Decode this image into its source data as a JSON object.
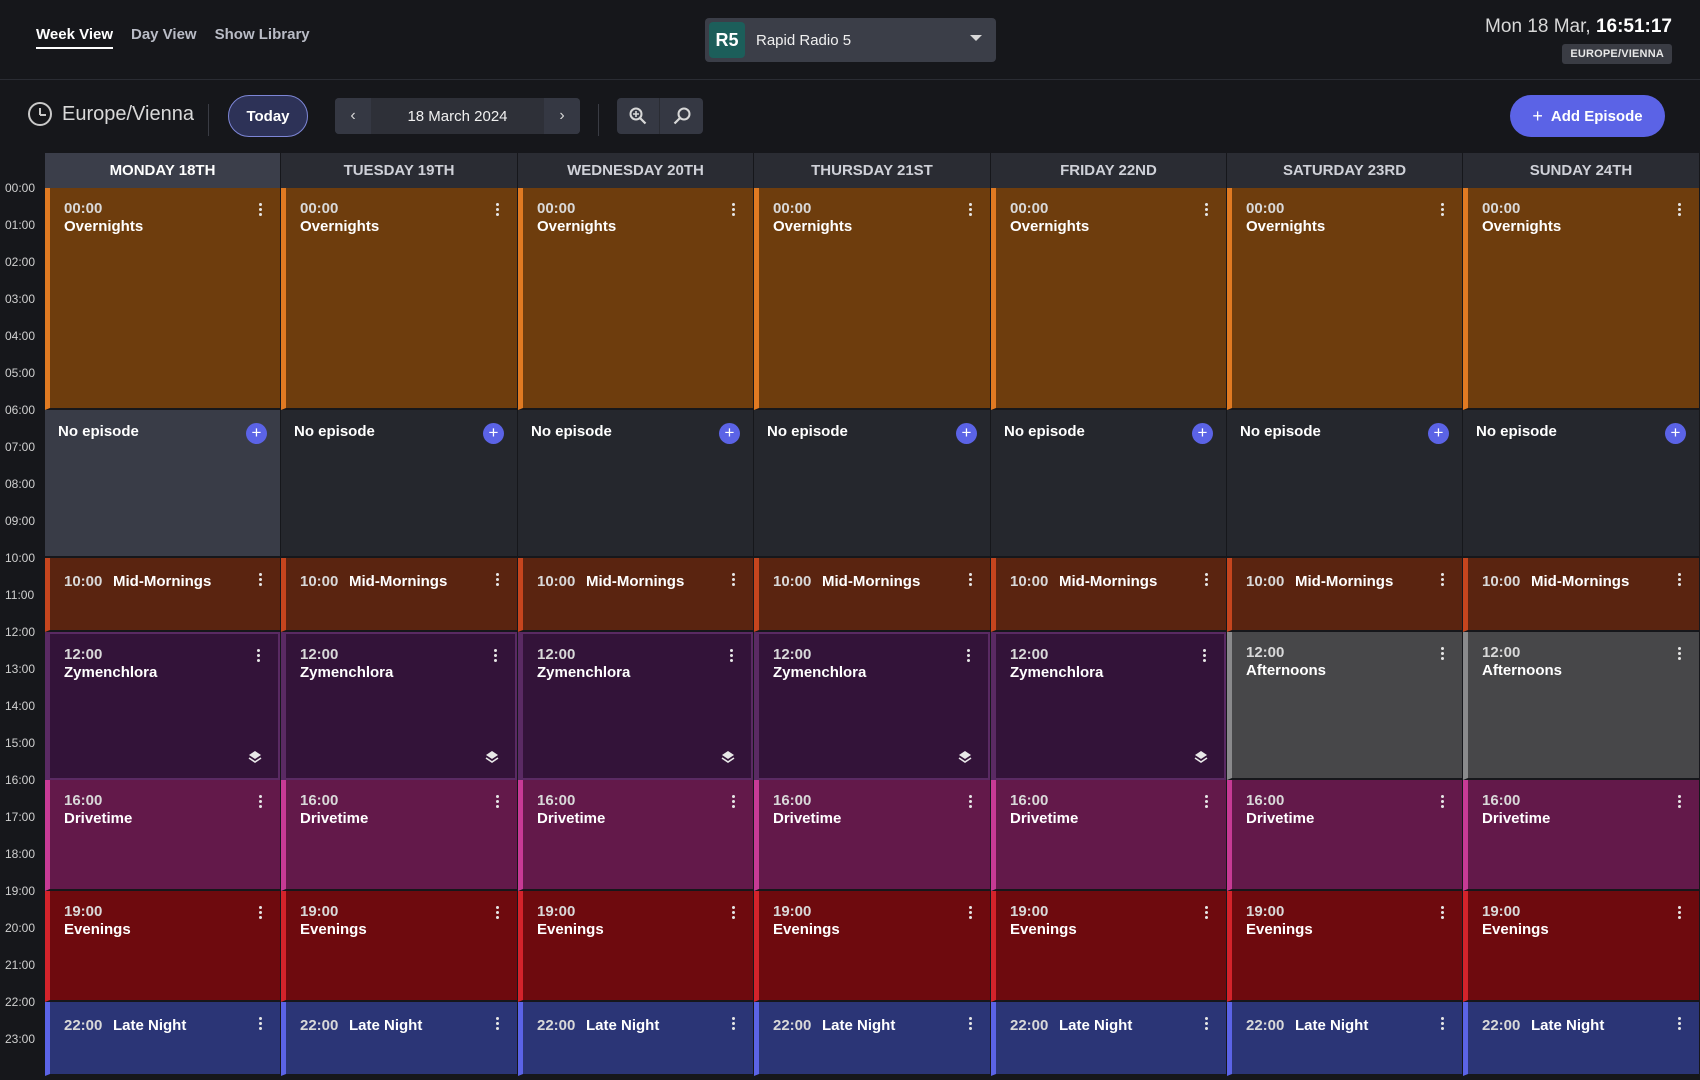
{
  "nav": {
    "tabs": [
      {
        "label": "Week View",
        "active": true
      },
      {
        "label": "Day View",
        "active": false
      },
      {
        "label": "Show Library",
        "active": false
      }
    ]
  },
  "station": {
    "logo_text": "R5",
    "name": "Rapid Radio 5"
  },
  "clock": {
    "date": "Mon 18 Mar,",
    "time": "16:51:17",
    "timezone_badge": "EUROPE/VIENNA"
  },
  "toolbar": {
    "timezone": "Europe/Vienna",
    "today_label": "Today",
    "date": "18 March 2024",
    "prev_icon": "chevron-left-icon",
    "next_icon": "chevron-right-icon",
    "zoom_in_icon": "zoom-in-icon",
    "zoom_out_icon": "zoom-out-icon",
    "add_episode_label": "Add Episode"
  },
  "calendar": {
    "days": [
      {
        "label": "MONDAY 18TH",
        "current": true
      },
      {
        "label": "TUESDAY 19TH",
        "current": false
      },
      {
        "label": "WEDNESDAY 20TH",
        "current": false
      },
      {
        "label": "THURSDAY 21ST",
        "current": false
      },
      {
        "label": "FRIDAY 22ND",
        "current": false
      },
      {
        "label": "SATURDAY 23RD",
        "current": false
      },
      {
        "label": "SUNDAY 24TH",
        "current": false
      }
    ],
    "hours": [
      "00:00",
      "01:00",
      "02:00",
      "03:00",
      "04:00",
      "05:00",
      "06:00",
      "07:00",
      "08:00",
      "09:00",
      "10:00",
      "11:00",
      "12:00",
      "13:00",
      "14:00",
      "15:00",
      "16:00",
      "17:00",
      "18:00",
      "19:00",
      "20:00",
      "21:00",
      "22:00",
      "23:00"
    ],
    "no_episode_label": "No episode",
    "schedule": {
      "weekday": [
        {
          "time": "00:00",
          "title": "Overnights",
          "start": 0,
          "end": 6,
          "kind": "over",
          "style": "stack"
        },
        {
          "empty": true,
          "start": 6,
          "end": 10
        },
        {
          "time": "10:00",
          "title": "Mid-Mornings",
          "start": 10,
          "end": 12,
          "kind": "mid",
          "style": "inline"
        },
        {
          "time": "12:00",
          "title": "Zymenchlora",
          "start": 12,
          "end": 16,
          "kind": "zym",
          "style": "stack",
          "icon": "layers-icon"
        },
        {
          "time": "16:00",
          "title": "Drivetime",
          "start": 16,
          "end": 19,
          "kind": "drive",
          "style": "stack"
        },
        {
          "time": "19:00",
          "title": "Evenings",
          "start": 19,
          "end": 22,
          "kind": "even",
          "style": "stack"
        },
        {
          "time": "22:00",
          "title": "Late Night",
          "start": 22,
          "end": 24,
          "kind": "late",
          "style": "inline"
        }
      ],
      "weekend": [
        {
          "time": "00:00",
          "title": "Overnights",
          "start": 0,
          "end": 6,
          "kind": "over",
          "style": "stack"
        },
        {
          "empty": true,
          "start": 6,
          "end": 10
        },
        {
          "time": "10:00",
          "title": "Mid-Mornings",
          "start": 10,
          "end": 12,
          "kind": "mid",
          "style": "inline"
        },
        {
          "time": "12:00",
          "title": "Afternoons",
          "start": 12,
          "end": 16,
          "kind": "aft",
          "style": "stack"
        },
        {
          "time": "16:00",
          "title": "Drivetime",
          "start": 16,
          "end": 19,
          "kind": "drive",
          "style": "stack"
        },
        {
          "time": "19:00",
          "title": "Evenings",
          "start": 19,
          "end": 22,
          "kind": "even",
          "style": "stack"
        },
        {
          "time": "22:00",
          "title": "Late Night",
          "start": 22,
          "end": 24,
          "kind": "late",
          "style": "inline"
        }
      ]
    }
  },
  "colors": {
    "accent": "#5b63e6",
    "overnights": "#6e3d0d",
    "mid_mornings": "#5a2410",
    "zymenchlora": "#331339",
    "afternoons": "#474749",
    "drivetime": "#63194a",
    "evenings": "#6e0a0e",
    "late_night": "#2b3576"
  }
}
